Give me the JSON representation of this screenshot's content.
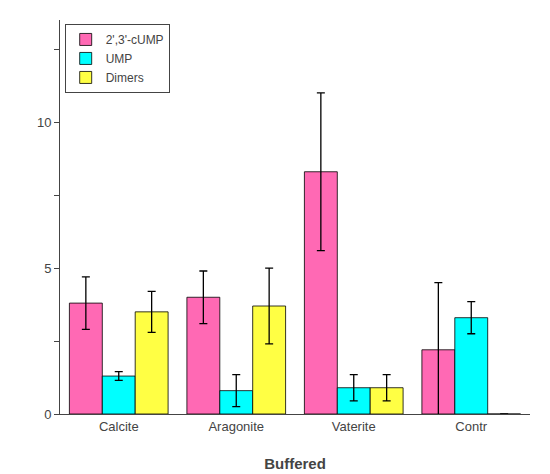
{
  "chart_data": {
    "type": "bar",
    "categories": [
      "Calcite",
      "Aragonite",
      "Vaterite",
      "Contr"
    ],
    "series": [
      {
        "name": "2',3'-cUMP",
        "color": "#FF69B4",
        "values": [
          3.8,
          4.0,
          8.3,
          2.2
        ],
        "errors": [
          0.9,
          0.9,
          2.7,
          2.3
        ]
      },
      {
        "name": "UMP",
        "color": "#00FFFF",
        "values": [
          1.3,
          0.8,
          0.9,
          3.3
        ],
        "errors": [
          0.15,
          0.55,
          0.45,
          0.55
        ]
      },
      {
        "name": "Dimers",
        "color": "#FFFF44",
        "values": [
          3.5,
          3.7,
          0.9,
          0.0
        ],
        "errors": [
          0.7,
          1.3,
          0.45,
          0.0
        ]
      }
    ],
    "xlabel": "Buffered",
    "ylim": [
      0,
      13.5
    ],
    "yticks": [
      0,
      {
        "value": 2.5,
        "label": null
      },
      5,
      {
        "value": 7.5,
        "label": null
      },
      10,
      {
        "value": 12.5,
        "label": null
      }
    ],
    "grid": false,
    "legend": "upper left"
  }
}
